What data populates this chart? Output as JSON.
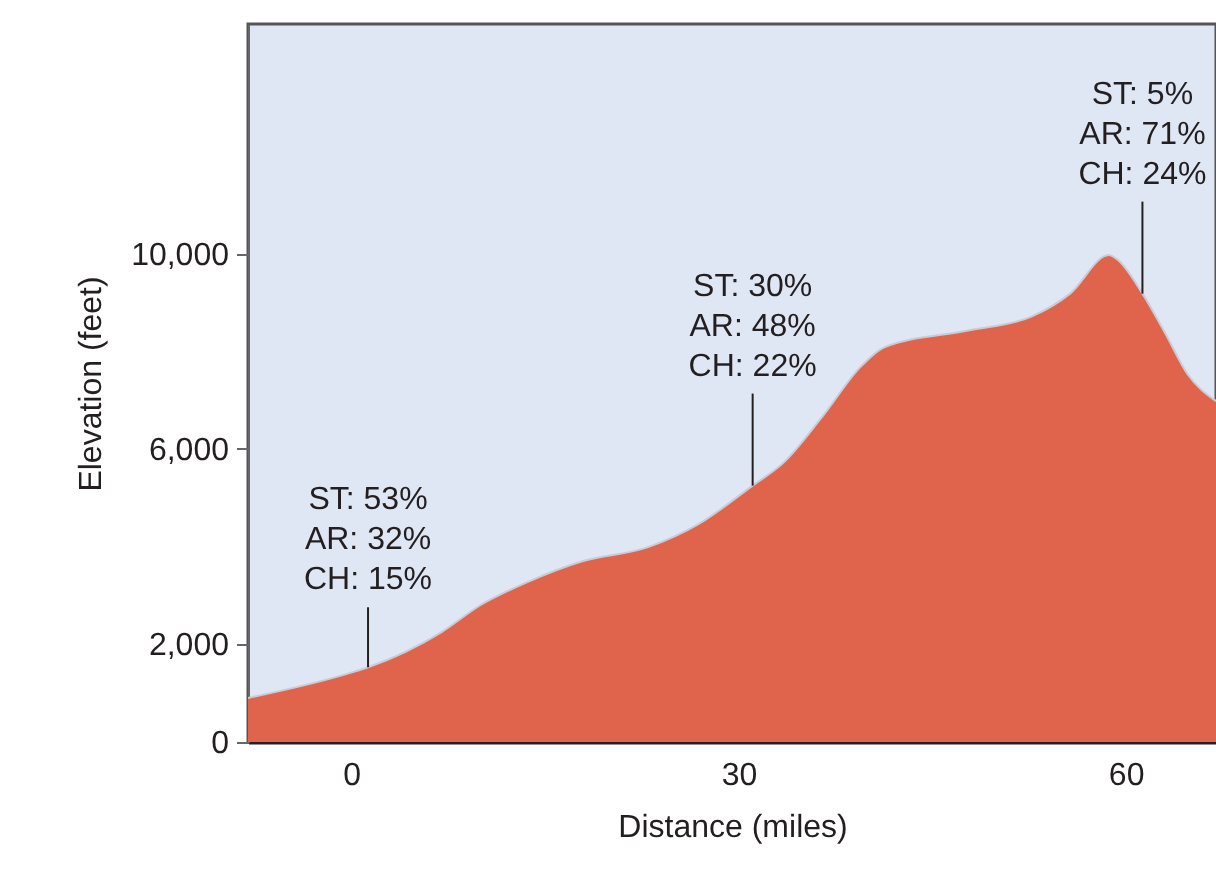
{
  "chart_data": {
    "type": "area",
    "xlabel": "Distance (miles)",
    "ylabel": "Elevation (feet)",
    "x": [
      -8,
      0,
      1.3,
      7,
      10,
      13.7,
      17.9,
      23,
      26.9,
      31.1,
      33.5,
      36.5,
      39.5,
      41.3,
      47.9,
      52.7,
      55.7,
      58.7,
      59.3,
      61.3,
      63,
      64.8,
      67
    ],
    "series": [
      {
        "color": "#e0634b",
        "values": [
          900,
          1420,
          1530,
          2250,
          2800,
          3280,
          3700,
          3990,
          4460,
          5250,
          5720,
          6660,
          7690,
          8080,
          8430,
          8710,
          9180,
          9970,
          9890,
          9180,
          8400,
          7530,
          6980
        ]
      }
    ],
    "xlim": [
      -8,
      67
    ],
    "xticks": [
      0,
      30,
      60
    ],
    "ylim": [
      0,
      14700
    ],
    "yticks": [
      0,
      {
        "value": 2000,
        "label": "2,000"
      },
      {
        "value": 6000,
        "label": "6,000"
      },
      {
        "value": 10000,
        "label": "10,000"
      }
    ],
    "grid": false,
    "annotations": [
      {
        "text": "ST: 53%\nAR: 32%\nCH: 15%",
        "x": 1.3,
        "y": 1530
      },
      {
        "text": "ST: 30%\nAR: 48%\nCH: 22%",
        "x": 31.1,
        "y": 5250
      },
      {
        "text": "ST:   5%\nAR: 71%\nCH: 24%",
        "x": 61.3,
        "y": 9180
      }
    ]
  }
}
